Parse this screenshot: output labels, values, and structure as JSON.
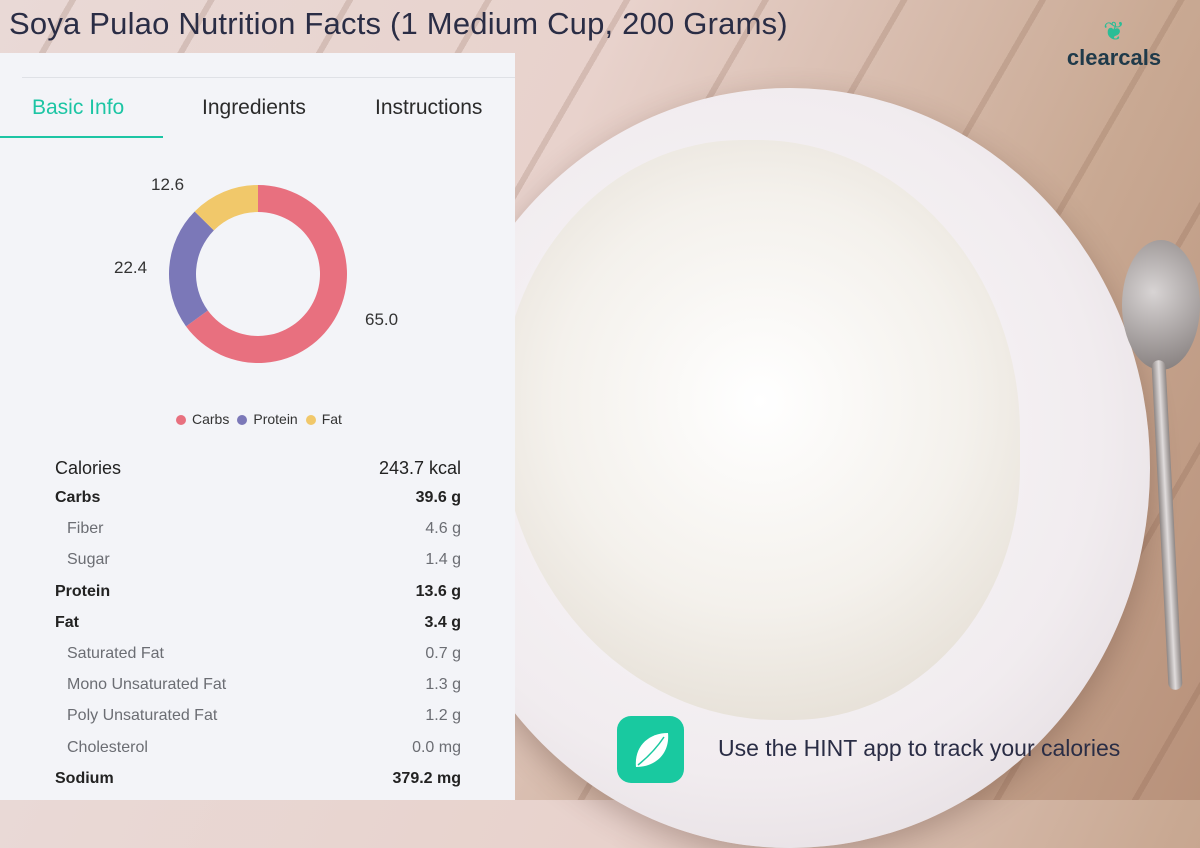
{
  "title": "Soya Pulao Nutrition Facts (1 Medium Cup, 200 Grams)",
  "logo": {
    "text": "clearcals",
    "icon": "tree-icon"
  },
  "tabs": [
    {
      "label": "Basic Info",
      "active": true
    },
    {
      "label": "Ingredients"
    },
    {
      "label": "Instructions"
    }
  ],
  "colors": {
    "accent": "#1cc5a4",
    "carbs": "#e8707f",
    "protein": "#7b78b8",
    "fat": "#f1c86a"
  },
  "chart_data": {
    "type": "pie",
    "variant": "donut",
    "categories": [
      "Carbs",
      "Protein",
      "Fat"
    ],
    "values": [
      65.0,
      22.4,
      12.6
    ],
    "labels": [
      "65.0",
      "22.4",
      "12.6"
    ],
    "legend": "bottom"
  },
  "nutrition": {
    "calories": {
      "label": "Calories",
      "value": "243.7 kcal"
    },
    "rows": [
      {
        "label": "Carbs",
        "value": "39.6 g",
        "level": "main"
      },
      {
        "label": "Fiber",
        "value": "4.6 g",
        "level": "sub"
      },
      {
        "label": "Sugar",
        "value": "1.4 g",
        "level": "sub"
      },
      {
        "label": "Protein",
        "value": "13.6 g",
        "level": "main"
      },
      {
        "label": "Fat",
        "value": "3.4 g",
        "level": "main"
      },
      {
        "label": "Saturated Fat",
        "value": "0.7 g",
        "level": "sub"
      },
      {
        "label": "Mono Unsaturated Fat",
        "value": "1.3 g",
        "level": "sub"
      },
      {
        "label": "Poly Unsaturated Fat",
        "value": "1.2 g",
        "level": "sub"
      },
      {
        "label": "Cholesterol",
        "value": "0.0 mg",
        "level": "sub"
      },
      {
        "label": "Sodium",
        "value": "379.2 mg",
        "level": "main"
      }
    ]
  },
  "promo": {
    "text": "Use the HINT app to track your calories",
    "icon": "hint-leaf-icon"
  }
}
